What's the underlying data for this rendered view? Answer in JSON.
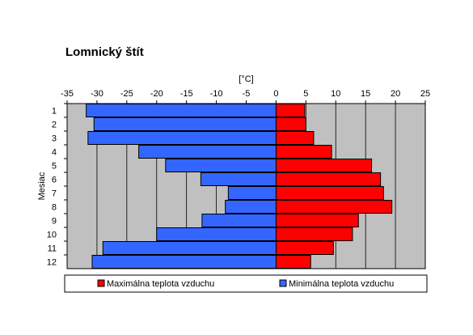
{
  "chart_data": {
    "type": "bar",
    "orientation": "horizontal",
    "title": "Lomnický štít",
    "xlabel": "[°C]",
    "ylabel": "Mesiac",
    "xlim": [
      -35,
      25
    ],
    "xticks": [
      "-35",
      "-30",
      "-25",
      "-20",
      "-15",
      "-10",
      "-5",
      "0",
      "5",
      "10",
      "15",
      "20",
      "25"
    ],
    "categories": [
      "1",
      "2",
      "3",
      "4",
      "5",
      "6",
      "7",
      "8",
      "9",
      "10",
      "11",
      "12"
    ],
    "series": [
      {
        "name": "Maximálna teplota vzduchu",
        "color": "#ff0000",
        "values": [
          4.8,
          5.0,
          6.3,
          9.3,
          16.0,
          17.5,
          18.0,
          19.4,
          13.8,
          12.8,
          9.6,
          5.8
        ]
      },
      {
        "name": "Minimálna teplota vzduchu",
        "color": "#3366ff",
        "values": [
          -31.8,
          -30.5,
          -31.5,
          -23.0,
          -18.5,
          -12.6,
          -8.0,
          -8.5,
          -12.4,
          -20.0,
          -29.0,
          -30.8
        ]
      }
    ],
    "grid": true,
    "plot_background": "#c0c0c0",
    "legend_position": "bottom"
  }
}
